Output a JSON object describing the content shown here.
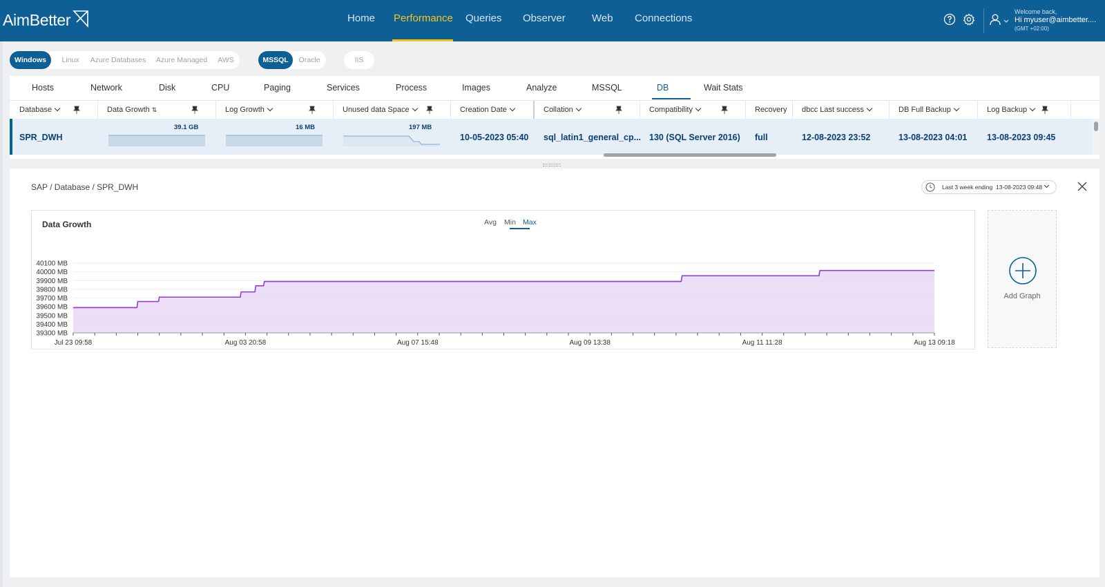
{
  "app": {
    "logo": "AimBetter",
    "nav": [
      "Home",
      "Performance",
      "Queries",
      "Observer",
      "Web",
      "Connections"
    ],
    "nav_active": "Performance",
    "welcome": "Welcome back,",
    "user": "Hi myuser@aimbetter....",
    "timezone": "(GMT +02:00)"
  },
  "filters": {
    "os": [
      "Windows",
      "Linux",
      "Azure Databases",
      "Azure Managed",
      "AWS"
    ],
    "os_active": "Windows",
    "db": [
      "MSSQL",
      "Oracle"
    ],
    "db_active": "MSSQL",
    "web": [
      "IIS"
    ]
  },
  "tabs": [
    "Hosts",
    "Network",
    "Disk",
    "CPU",
    "Paging",
    "Services",
    "Process",
    "Images",
    "Analyze",
    "MSSQL",
    "DB",
    "Wait Stats"
  ],
  "tab_active": "DB",
  "table": {
    "headers": [
      "Database",
      "Data Growth",
      "Log Growth",
      "Unused data Space",
      "Creation Date",
      "Collation",
      "Compatibility",
      "Recovery",
      "dbcc Last success",
      "DB Full Backup",
      "Log Backup"
    ],
    "row": {
      "database": "SPR_DWH",
      "data_growth": "39.1 GB",
      "log_growth": "16 MB",
      "unused_space": "197 MB",
      "creation_date": "10-05-2023 05:40",
      "collation": "sql_latin1_general_cp...",
      "compatibility": "130 (SQL Server 2016)",
      "recovery": "full",
      "dbcc_last_success": "12-08-2023 23:52",
      "db_full_backup": "13-08-2023 04:01",
      "log_backup": "13-08-2023 09:45"
    }
  },
  "detail": {
    "breadcrumb": "SAP / Database / SPR_DWH",
    "range_label": "Last 3 week ending",
    "range_date": "13-08-2023 09:48",
    "add_graph": "Add Graph"
  },
  "chart_data": {
    "type": "area",
    "title": "Data Growth",
    "aggregations": [
      "Avg",
      "Min",
      "Max"
    ],
    "aggregation_active": "Max",
    "y_unit": "MB",
    "ylim": [
      39300,
      40100
    ],
    "y_ticks": [
      "40100 MB",
      "40000 MB",
      "39900 MB",
      "39800 MB",
      "39700 MB",
      "39600 MB",
      "39500 MB",
      "39400 MB",
      "39300 MB"
    ],
    "x_tick_labels": [
      "Jul 23 09:58",
      "Aug 03 20:58",
      "Aug 07 15:48",
      "Aug 09 13:38",
      "Aug 11 11:28",
      "Aug 13 09:18"
    ],
    "x_tick_positions": [
      0,
      0.2,
      0.4,
      0.6,
      0.8,
      1.0
    ],
    "x": [
      0,
      0.074,
      0.075,
      0.099,
      0.1,
      0.194,
      0.195,
      0.211,
      0.212,
      0.221,
      0.222,
      0.706,
      0.707,
      0.866,
      0.867,
      1.0
    ],
    "y": [
      39590,
      39590,
      39660,
      39660,
      39710,
      39710,
      39770,
      39770,
      39840,
      39840,
      39890,
      39890,
      39955,
      39955,
      40015,
      40015
    ],
    "series_color": "#8f3fd1",
    "fill_color": "#ead8f7",
    "grid": true
  }
}
